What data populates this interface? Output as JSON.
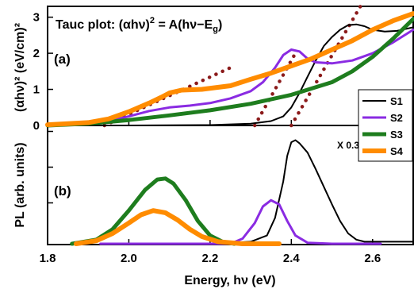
{
  "chart_data": [
    {
      "panel_label": "(a)",
      "type": "line",
      "title": "Tauc plot",
      "equation": {
        "left": "(αhν)",
        "exp": "2",
        "right": " = A(hν−E",
        "sub": "g",
        "close": ")"
      },
      "ylabel": "(αhν)² (eV/cm)²",
      "ylim": [
        0,
        3.3
      ],
      "yticks": [
        0,
        1,
        2,
        3
      ],
      "xlim": [
        1.8,
        2.7
      ],
      "series": [
        {
          "name": "S1",
          "color": "#000000",
          "points": [
            [
              1.8,
              0.0
            ],
            [
              2.0,
              0.0
            ],
            [
              2.2,
              0.01
            ],
            [
              2.3,
              0.05
            ],
            [
              2.35,
              0.12
            ],
            [
              2.38,
              0.25
            ],
            [
              2.4,
              0.5
            ],
            [
              2.42,
              0.9
            ],
            [
              2.44,
              1.35
            ],
            [
              2.46,
              1.8
            ],
            [
              2.48,
              2.2
            ],
            [
              2.5,
              2.45
            ],
            [
              2.52,
              2.65
            ],
            [
              2.54,
              2.78
            ],
            [
              2.56,
              2.8
            ],
            [
              2.58,
              2.75
            ],
            [
              2.6,
              2.65
            ],
            [
              2.63,
              2.6
            ],
            [
              2.66,
              2.62
            ],
            [
              2.7,
              2.72
            ]
          ]
        },
        {
          "name": "S2",
          "color": "#8a2be2",
          "points": [
            [
              1.8,
              0.0
            ],
            [
              1.95,
              0.12
            ],
            [
              2.0,
              0.25
            ],
            [
              2.05,
              0.4
            ],
            [
              2.1,
              0.5
            ],
            [
              2.15,
              0.55
            ],
            [
              2.2,
              0.62
            ],
            [
              2.25,
              0.75
            ],
            [
              2.3,
              0.95
            ],
            [
              2.33,
              1.2
            ],
            [
              2.36,
              1.6
            ],
            [
              2.38,
              1.95
            ],
            [
              2.4,
              2.1
            ],
            [
              2.42,
              2.05
            ],
            [
              2.44,
              1.85
            ],
            [
              2.46,
              1.75
            ],
            [
              2.5,
              1.72
            ],
            [
              2.55,
              1.8
            ],
            [
              2.6,
              2.0
            ],
            [
              2.65,
              2.3
            ],
            [
              2.7,
              2.65
            ]
          ]
        },
        {
          "name": "S3",
          "color": "#1e7d1e",
          "points": [
            [
              1.8,
              0.0
            ],
            [
              1.9,
              0.05
            ],
            [
              2.0,
              0.15
            ],
            [
              2.1,
              0.28
            ],
            [
              2.2,
              0.42
            ],
            [
              2.3,
              0.6
            ],
            [
              2.4,
              0.85
            ],
            [
              2.5,
              1.2
            ],
            [
              2.55,
              1.5
            ],
            [
              2.6,
              1.9
            ],
            [
              2.65,
              2.4
            ],
            [
              2.7,
              2.95
            ]
          ]
        },
        {
          "name": "S4",
          "color": "#ff8c00",
          "points": [
            [
              1.8,
              0.02
            ],
            [
              1.9,
              0.08
            ],
            [
              1.95,
              0.18
            ],
            [
              2.0,
              0.38
            ],
            [
              2.05,
              0.62
            ],
            [
              2.08,
              0.78
            ],
            [
              2.1,
              0.9
            ],
            [
              2.13,
              0.98
            ],
            [
              2.18,
              1.0
            ],
            [
              2.25,
              1.1
            ],
            [
              2.3,
              1.28
            ],
            [
              2.35,
              1.45
            ],
            [
              2.4,
              1.65
            ],
            [
              2.45,
              1.85
            ],
            [
              2.5,
              2.1
            ],
            [
              2.55,
              2.35
            ],
            [
              2.6,
              2.65
            ],
            [
              2.65,
              2.9
            ],
            [
              2.7,
              3.1
            ]
          ]
        }
      ],
      "fit_lines": [
        {
          "color": "#8b1a1a",
          "points": [
            [
              1.94,
              0.0
            ],
            [
              2.25,
              1.6
            ]
          ]
        },
        {
          "color": "#8b1a1a",
          "points": [
            [
              2.31,
              0.0
            ],
            [
              2.41,
              2.0
            ]
          ]
        },
        {
          "color": "#8b1a1a",
          "points": [
            [
              2.4,
              0.0
            ],
            [
              2.57,
              3.3
            ]
          ]
        }
      ]
    },
    {
      "panel_label": "(b)",
      "type": "line",
      "ylabel": "PL (arb. units)",
      "ylim": [
        0,
        1.05
      ],
      "xlabel": "Energy, hν (eV)",
      "xlim": [
        1.8,
        2.7
      ],
      "xticks": [
        1.8,
        2.0,
        2.2,
        2.4,
        2.6
      ],
      "annotation": "X 0.3",
      "series": [
        {
          "name": "S1",
          "color": "#000000",
          "points": [
            [
              2.2,
              0.0
            ],
            [
              2.3,
              0.02
            ],
            [
              2.34,
              0.08
            ],
            [
              2.36,
              0.25
            ],
            [
              2.38,
              0.6
            ],
            [
              2.39,
              0.85
            ],
            [
              2.4,
              0.98
            ],
            [
              2.41,
              1.0
            ],
            [
              2.42,
              0.97
            ],
            [
              2.44,
              0.88
            ],
            [
              2.46,
              0.72
            ],
            [
              2.48,
              0.55
            ],
            [
              2.5,
              0.38
            ],
            [
              2.52,
              0.22
            ],
            [
              2.54,
              0.1
            ],
            [
              2.56,
              0.04
            ],
            [
              2.58,
              0.02
            ],
            [
              2.6,
              0.02
            ],
            [
              2.7,
              0.02
            ]
          ]
        },
        {
          "name": "S2",
          "color": "#8a2be2",
          "points": [
            [
              1.93,
              0.0
            ],
            [
              2.25,
              0.0
            ],
            [
              2.28,
              0.05
            ],
            [
              2.31,
              0.2
            ],
            [
              2.33,
              0.36
            ],
            [
              2.35,
              0.42
            ],
            [
              2.37,
              0.38
            ],
            [
              2.39,
              0.22
            ],
            [
              2.41,
              0.08
            ],
            [
              2.44,
              0.01
            ],
            [
              2.5,
              0.0
            ],
            [
              2.62,
              0.0
            ]
          ]
        },
        {
          "name": "S3",
          "color": "#1e7d1e",
          "points": [
            [
              1.86,
              0.0
            ],
            [
              1.92,
              0.04
            ],
            [
              1.96,
              0.14
            ],
            [
              2.0,
              0.32
            ],
            [
              2.04,
              0.52
            ],
            [
              2.07,
              0.62
            ],
            [
              2.09,
              0.63
            ],
            [
              2.11,
              0.58
            ],
            [
              2.14,
              0.42
            ],
            [
              2.17,
              0.22
            ],
            [
              2.2,
              0.08
            ],
            [
              2.23,
              0.02
            ],
            [
              2.26,
              0.0
            ]
          ]
        },
        {
          "name": "S4",
          "color": "#ff8c00",
          "points": [
            [
              1.87,
              0.0
            ],
            [
              1.92,
              0.03
            ],
            [
              1.96,
              0.1
            ],
            [
              2.0,
              0.2
            ],
            [
              2.03,
              0.28
            ],
            [
              2.06,
              0.32
            ],
            [
              2.09,
              0.3
            ],
            [
              2.12,
              0.23
            ],
            [
              2.15,
              0.14
            ],
            [
              2.18,
              0.07
            ],
            [
              2.22,
              0.02
            ],
            [
              2.28,
              0.0
            ],
            [
              2.37,
              0.0
            ]
          ]
        }
      ]
    }
  ],
  "legend": [
    {
      "name": "S1",
      "color": "#000000"
    },
    {
      "name": "S2",
      "color": "#8a2be2"
    },
    {
      "name": "S3",
      "color": "#1e7d1e"
    },
    {
      "name": "S4",
      "color": "#ff8c00"
    }
  ]
}
